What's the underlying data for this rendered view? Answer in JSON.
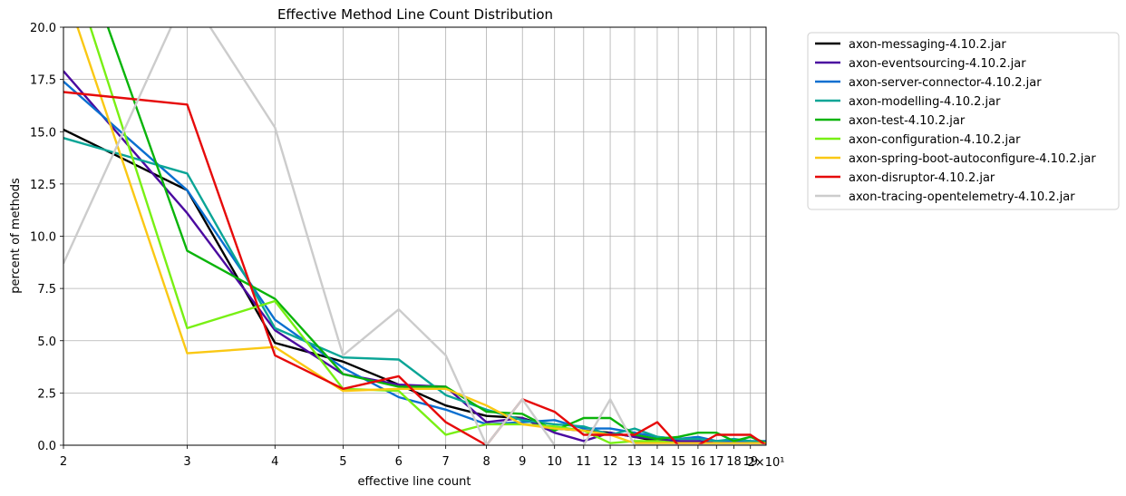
{
  "chart_data": {
    "type": "line",
    "title": "Effective Method Line Count Distribution",
    "xlabel": "effective line count",
    "ylabel": "percent of methods",
    "xscale": "log",
    "xlim": [
      2,
      20
    ],
    "ylim": [
      0,
      20
    ],
    "grid": true,
    "legend_placement": "outside-top-right",
    "x_tick_labels": [
      "2",
      "3",
      "4",
      "5",
      "6",
      "7",
      "8",
      "9",
      "10",
      "11",
      "12",
      "13",
      "14",
      "15",
      "16",
      "17",
      "18",
      "19"
    ],
    "x_multiplier_label": "2×10¹",
    "y_tick_labels": [
      "0.0",
      "2.5",
      "5.0",
      "7.5",
      "10.0",
      "12.5",
      "15.0",
      "17.5",
      "20.0"
    ],
    "x": [
      2,
      3,
      4,
      5,
      6,
      7,
      8,
      9,
      10,
      11,
      12,
      13,
      14,
      15,
      16,
      17,
      18,
      19,
      20
    ],
    "series": [
      {
        "name": "axon-messaging-4.10.2.jar",
        "color": "#000000",
        "values": [
          15.1,
          12.2,
          4.9,
          4.0,
          2.9,
          1.9,
          1.4,
          1.3,
          0.8,
          0.7,
          0.6,
          0.4,
          0.2,
          0.2,
          0.1,
          0.1,
          0.1,
          0.1,
          0.1
        ]
      },
      {
        "name": "axon-eventsourcing-4.10.2.jar",
        "color": "#4b0aa0",
        "values": [
          17.9,
          11.1,
          5.5,
          3.4,
          2.9,
          2.8,
          1.1,
          1.3,
          0.6,
          0.2,
          0.6,
          0.4,
          0.3,
          0.2,
          0.2,
          0.1,
          0.1,
          0.1,
          0.1
        ]
      },
      {
        "name": "axon-server-connector-4.10.2.jar",
        "color": "#0a6fd0",
        "values": [
          17.4,
          12.2,
          6.0,
          3.7,
          2.3,
          1.7,
          1.0,
          1.1,
          1.2,
          0.8,
          0.8,
          0.6,
          0.4,
          0.3,
          0.4,
          0.2,
          0.2,
          0.2,
          0.2
        ]
      },
      {
        "name": "axon-modelling-4.10.2.jar",
        "color": "#0aa596",
        "values": [
          14.7,
          13.0,
          5.6,
          4.2,
          4.1,
          2.4,
          1.7,
          1.2,
          1.0,
          0.9,
          0.5,
          0.8,
          0.4,
          0.3,
          0.3,
          0.2,
          0.3,
          0.2,
          0.1
        ]
      },
      {
        "name": "axon-test-4.10.2.jar",
        "color": "#0ab40a",
        "values": [
          26.0,
          9.3,
          7.0,
          3.4,
          2.8,
          2.8,
          1.6,
          1.5,
          0.7,
          1.3,
          1.3,
          0.5,
          0.3,
          0.4,
          0.6,
          0.6,
          0.2,
          0.4,
          0.1
        ]
      },
      {
        "name": "axon-configuration-4.10.2.jar",
        "color": "#78f014",
        "values": [
          24.0,
          5.6,
          6.9,
          2.7,
          2.6,
          0.5,
          1.0,
          1.0,
          0.9,
          0.7,
          0.1,
          0.2,
          0.2,
          0.1,
          0.1,
          0.1,
          0.1,
          0.1,
          0.1
        ]
      },
      {
        "name": "axon-spring-boot-autoconfigure-4.10.2.jar",
        "color": "#fac814",
        "values": [
          22.0,
          4.4,
          4.7,
          2.6,
          2.7,
          2.7,
          1.9,
          1.0,
          0.8,
          0.7,
          0.5,
          0.1,
          0.1,
          0.1,
          0.1,
          0.1,
          0.1,
          0.1,
          0.1
        ]
      },
      {
        "name": "axon-disruptor-4.10.2.jar",
        "color": "#e60a0a",
        "values": [
          16.9,
          16.3,
          4.3,
          2.7,
          3.3,
          1.1,
          0.0,
          2.2,
          1.6,
          0.5,
          0.5,
          0.5,
          1.1,
          0.0,
          0.0,
          0.5,
          0.5,
          0.5,
          0.0
        ]
      },
      {
        "name": "axon-tracing-opentelemetry-4.10.2.jar",
        "color": "#cccccc",
        "values": [
          8.7,
          21.7,
          15.2,
          4.3,
          6.5,
          4.3,
          0.0,
          2.2,
          0.0,
          0.0,
          2.2,
          0.0,
          0.0,
          0.0,
          0.0,
          0.0,
          0.0,
          0.0,
          0.0
        ]
      }
    ]
  }
}
